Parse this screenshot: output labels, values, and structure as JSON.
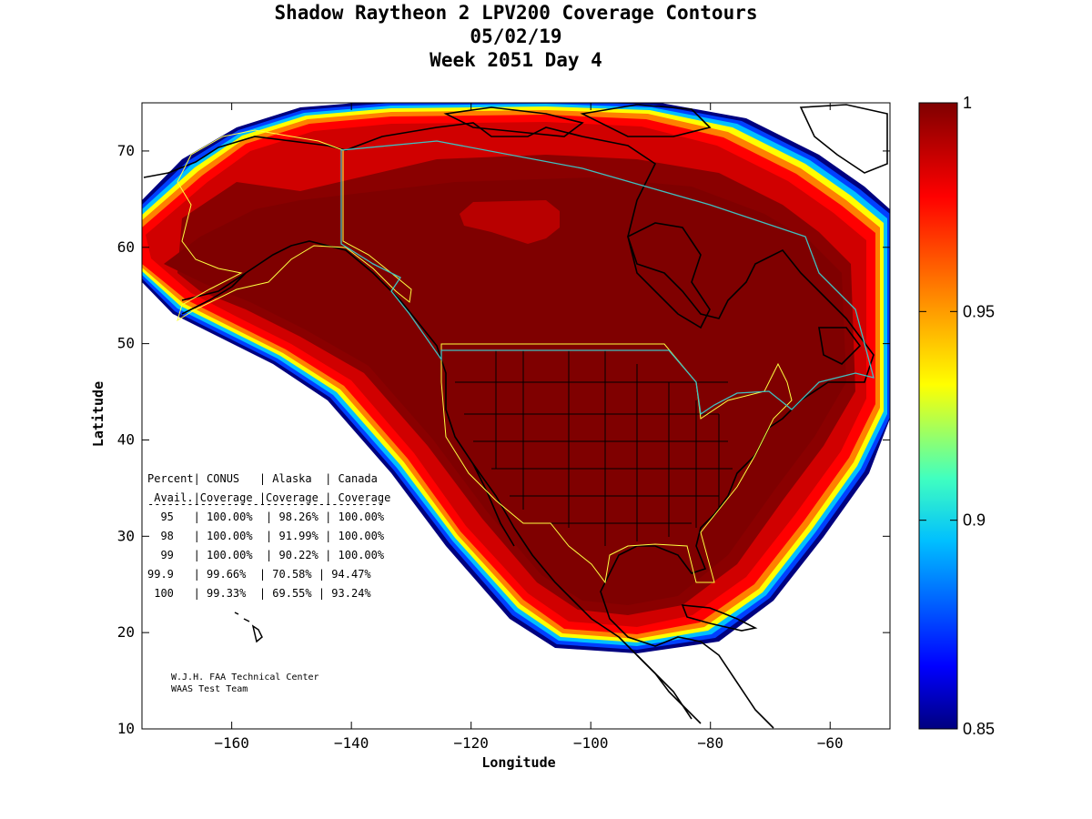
{
  "title": {
    "line1": "Shadow Raytheon 2 LPV200 Coverage Contours",
    "line2": "05/02/19",
    "line3": "Week 2051 Day 4"
  },
  "axes": {
    "xlabel": "Longitude",
    "ylabel": "Latitude",
    "xlim": [
      -175,
      -50
    ],
    "ylim": [
      10,
      75
    ],
    "xticks": [
      -160,
      -140,
      -120,
      -100,
      -80,
      -60
    ],
    "yticks": [
      10,
      20,
      30,
      40,
      50,
      60,
      70
    ]
  },
  "colorbar": {
    "min": 0.85,
    "max": 1,
    "ticks": [
      "1",
      "0.95",
      "0.9",
      "0.85"
    ],
    "colors": [
      "#7f0000",
      "#c00000",
      "#ff0000",
      "#ff6000",
      "#ffaa00",
      "#ffff00",
      "#80ff80",
      "#00ffff",
      "#00a0ff",
      "#0040ff",
      "#0000c0",
      "#00007f"
    ]
  },
  "table": {
    "header1": "Percent| CONUS   | Alaska  | Canada",
    "header2": " Avail.|Coverage |Coverage | Coverage",
    "divider": "------------------------------------",
    "rows": [
      "  95   | 100.00%  | 98.26% | 100.00%",
      "  98   | 100.00%  | 91.99% | 100.00%",
      "  99   | 100.00%  | 90.22% | 100.00%",
      "99.9   | 99.66%  | 70.58% | 94.47%",
      " 100   | 99.33%  | 69.55% | 93.24%"
    ]
  },
  "credits": {
    "line1": "W.J.H. FAA Technical Center",
    "line2": "WAAS Test Team"
  }
}
